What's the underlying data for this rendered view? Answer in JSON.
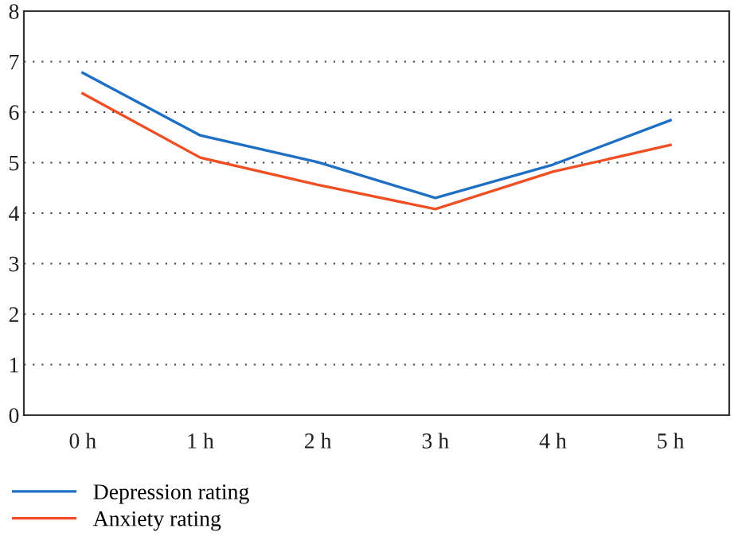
{
  "chart_data": {
    "type": "line",
    "categories": [
      "0 h",
      "1 h",
      "2 h",
      "3 h",
      "4 h",
      "5 h"
    ],
    "series": [
      {
        "name": "Depression rating",
        "color": "#1f6fc4",
        "values": [
          6.78,
          5.54,
          5.01,
          4.3,
          4.96,
          5.84
        ]
      },
      {
        "name": "Anxiety rating",
        "color": "#f04e23",
        "values": [
          6.37,
          5.1,
          4.56,
          4.08,
          4.82,
          5.35
        ]
      }
    ],
    "ylim": [
      0,
      8
    ],
    "yticks": [
      0,
      1,
      2,
      3,
      4,
      5,
      6,
      7,
      8
    ],
    "grid": "y",
    "legend": "bottom left",
    "marker": "none",
    "line_style": "solid"
  }
}
